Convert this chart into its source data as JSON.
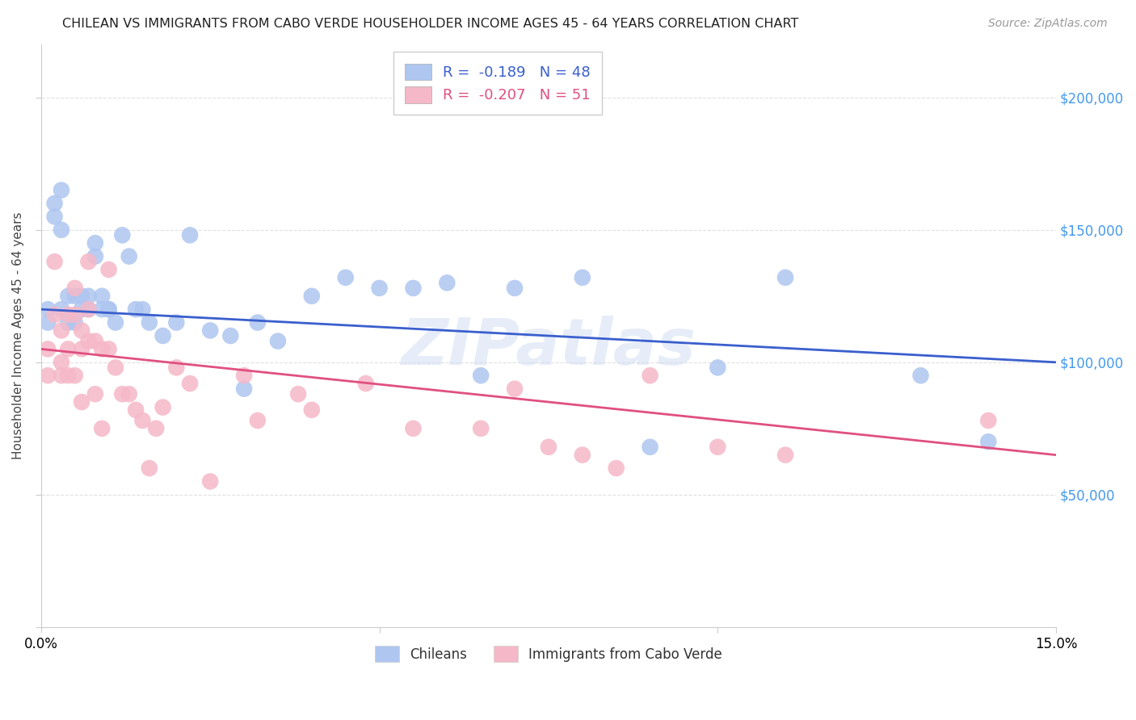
{
  "title": "CHILEAN VS IMMIGRANTS FROM CABO VERDE HOUSEHOLDER INCOME AGES 45 - 64 YEARS CORRELATION CHART",
  "source": "Source: ZipAtlas.com",
  "ylabel": "Householder Income Ages 45 - 64 years",
  "xlim": [
    0.0,
    0.15
  ],
  "ylim": [
    0,
    220000
  ],
  "yticks": [
    0,
    50000,
    100000,
    150000,
    200000
  ],
  "ytick_labels": [
    "",
    "$50,000",
    "$100,000",
    "$150,000",
    "$200,000"
  ],
  "xticks": [
    0.0,
    0.05,
    0.1,
    0.15
  ],
  "background_color": "#ffffff",
  "grid_color": "#e0e0e0",
  "chileans_color": "#aec6f0",
  "cabo_verde_color": "#f5b8c8",
  "chileans_line_color": "#3a5fcd",
  "cabo_verde_line_color": "#e05080",
  "R_chileans": -0.189,
  "N_chileans": 48,
  "R_cabo_verde": -0.207,
  "N_cabo_verde": 51,
  "chileans_label": "Chileans",
  "cabo_verde_label": "Immigrants from Cabo Verde",
  "chileans_x": [
    0.001,
    0.001,
    0.002,
    0.002,
    0.003,
    0.003,
    0.003,
    0.004,
    0.004,
    0.005,
    0.005,
    0.006,
    0.006,
    0.007,
    0.007,
    0.008,
    0.008,
    0.009,
    0.009,
    0.01,
    0.01,
    0.011,
    0.012,
    0.013,
    0.014,
    0.015,
    0.016,
    0.018,
    0.02,
    0.022,
    0.025,
    0.028,
    0.03,
    0.032,
    0.035,
    0.04,
    0.045,
    0.05,
    0.055,
    0.06,
    0.065,
    0.07,
    0.08,
    0.09,
    0.1,
    0.11,
    0.13,
    0.14
  ],
  "chileans_y": [
    120000,
    115000,
    160000,
    155000,
    165000,
    150000,
    120000,
    125000,
    115000,
    125000,
    115000,
    125000,
    120000,
    125000,
    120000,
    145000,
    140000,
    125000,
    120000,
    120000,
    120000,
    115000,
    148000,
    140000,
    120000,
    120000,
    115000,
    110000,
    115000,
    148000,
    112000,
    110000,
    90000,
    115000,
    108000,
    125000,
    132000,
    128000,
    128000,
    130000,
    95000,
    128000,
    132000,
    68000,
    98000,
    132000,
    95000,
    70000
  ],
  "cabo_verde_x": [
    0.001,
    0.001,
    0.002,
    0.002,
    0.003,
    0.003,
    0.003,
    0.004,
    0.004,
    0.004,
    0.005,
    0.005,
    0.005,
    0.006,
    0.006,
    0.006,
    0.007,
    0.007,
    0.007,
    0.008,
    0.008,
    0.009,
    0.009,
    0.01,
    0.01,
    0.011,
    0.012,
    0.013,
    0.014,
    0.015,
    0.016,
    0.017,
    0.018,
    0.02,
    0.022,
    0.025,
    0.03,
    0.032,
    0.038,
    0.04,
    0.048,
    0.055,
    0.065,
    0.07,
    0.075,
    0.08,
    0.085,
    0.09,
    0.1,
    0.11,
    0.14
  ],
  "cabo_verde_y": [
    105000,
    95000,
    138000,
    118000,
    112000,
    100000,
    95000,
    118000,
    105000,
    95000,
    128000,
    118000,
    95000,
    112000,
    105000,
    85000,
    138000,
    120000,
    108000,
    108000,
    88000,
    105000,
    75000,
    135000,
    105000,
    98000,
    88000,
    88000,
    82000,
    78000,
    60000,
    75000,
    83000,
    98000,
    92000,
    55000,
    95000,
    78000,
    88000,
    82000,
    92000,
    75000,
    75000,
    90000,
    68000,
    65000,
    60000,
    95000,
    68000,
    65000,
    78000
  ]
}
